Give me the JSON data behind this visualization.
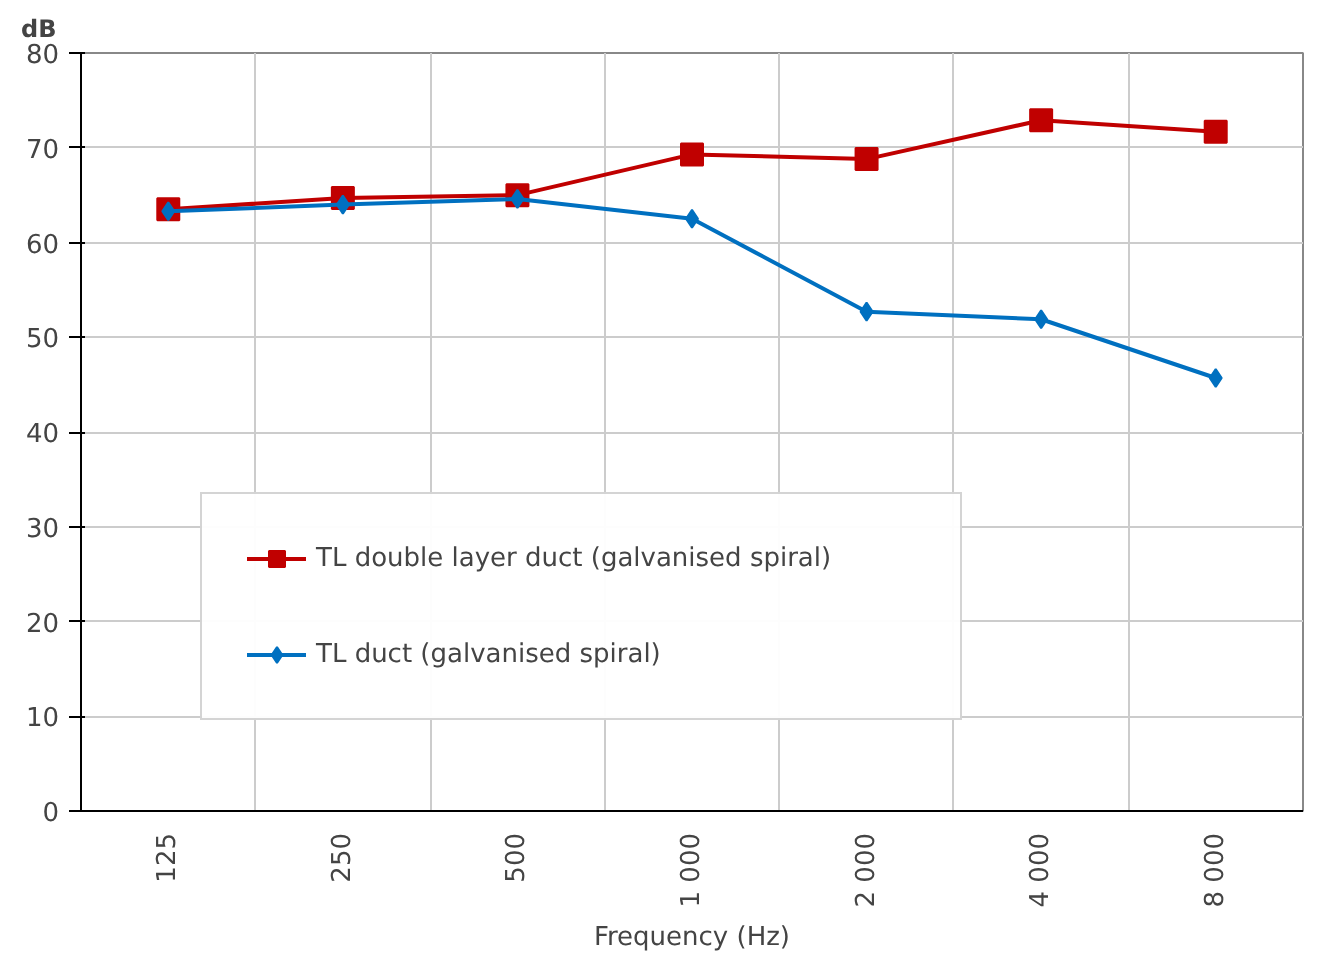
{
  "chart_data": {
    "type": "line",
    "ylabel": "dB",
    "xlabel": "Frequency (Hz)",
    "categories": [
      "125",
      "250",
      "500",
      "1 000",
      "2 000",
      "4 000",
      "8 000"
    ],
    "series": [
      {
        "name": "TL double layer duct (galvanised spiral)",
        "color": "#c00000",
        "marker": "square",
        "values": [
          63.5,
          64.7,
          65.0,
          69.3,
          68.8,
          72.9,
          71.7
        ]
      },
      {
        "name": "TL duct (galvanised spiral)",
        "color": "#0070c0",
        "marker": "diamond",
        "values": [
          63.3,
          64.0,
          64.6,
          62.5,
          52.7,
          51.9,
          45.7
        ]
      }
    ],
    "ylim": [
      0,
      80
    ],
    "yticks": [
      0,
      10,
      20,
      30,
      40,
      50,
      60,
      70,
      80
    ],
    "grid": true,
    "legend": "bottom left"
  }
}
